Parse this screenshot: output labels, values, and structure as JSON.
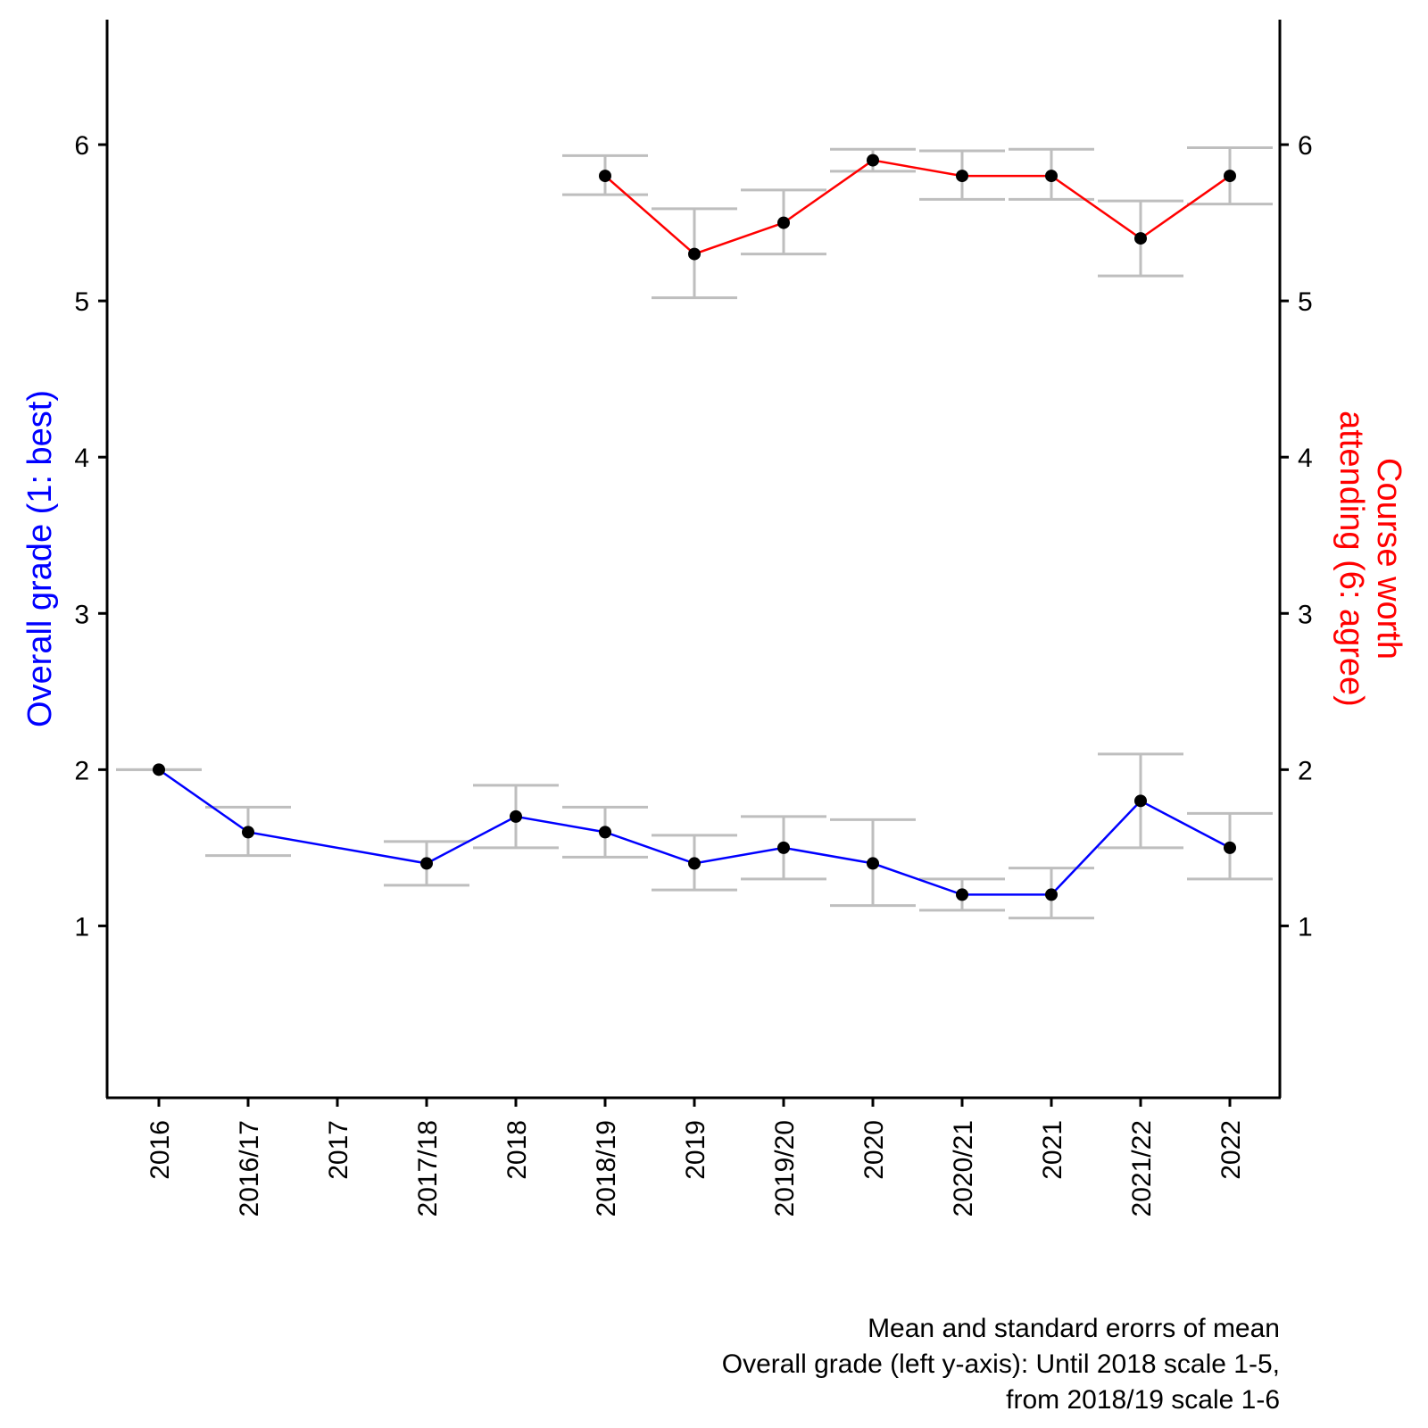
{
  "chart_data": {
    "type": "line",
    "categories": [
      "2016",
      "2016/17",
      "2017",
      "2017/18",
      "2018",
      "2018/19",
      "2019",
      "2019/20",
      "2020",
      "2020/21",
      "2021",
      "2021/22",
      "2022"
    ],
    "ylim": [
      -0.1,
      6.8
    ],
    "y_ticks": [
      1,
      2,
      3,
      4,
      5,
      6
    ],
    "y_tick_labels": [
      "1",
      "2",
      "3",
      "4",
      "5",
      "6"
    ],
    "ylabel_left": "Overall grade (1: best)",
    "ylabel_right_line1": "Course worth",
    "ylabel_right_line2": "attending (6: agree)",
    "caption": [
      "Mean and standard erorrs of mean",
      "Overall grade (left y-axis): Until 2018 scale 1-5,",
      "from 2018/19 scale 1-6"
    ],
    "series": [
      {
        "name": "Overall grade",
        "color": "#0000ff",
        "axis": "left",
        "values": [
          2.0,
          1.6,
          null,
          1.4,
          1.7,
          1.6,
          1.4,
          1.5,
          1.4,
          1.2,
          1.2,
          1.8,
          1.5
        ],
        "err_low": [
          2.0,
          1.45,
          null,
          1.26,
          1.5,
          1.44,
          1.23,
          1.3,
          1.13,
          1.1,
          1.05,
          1.5,
          1.3
        ],
        "err_high": [
          2.0,
          1.76,
          null,
          1.54,
          1.9,
          1.76,
          1.58,
          1.7,
          1.68,
          1.3,
          1.37,
          2.1,
          1.72
        ]
      },
      {
        "name": "Course worth attending",
        "color": "#ff0000",
        "axis": "right",
        "values": [
          null,
          null,
          null,
          null,
          null,
          5.8,
          5.3,
          5.5,
          5.9,
          5.8,
          5.8,
          5.4,
          5.8
        ],
        "err_low": [
          null,
          null,
          null,
          null,
          null,
          5.68,
          5.02,
          5.3,
          5.83,
          5.65,
          5.65,
          5.16,
          5.62
        ],
        "err_high": [
          null,
          null,
          null,
          null,
          null,
          5.93,
          5.59,
          5.71,
          5.97,
          5.96,
          5.97,
          5.64,
          5.98
        ]
      }
    ],
    "errorbar_color": "#bebebe",
    "point_color": "#000000",
    "left_title_color": "#0000ff",
    "right_title_color": "#ff0000"
  }
}
